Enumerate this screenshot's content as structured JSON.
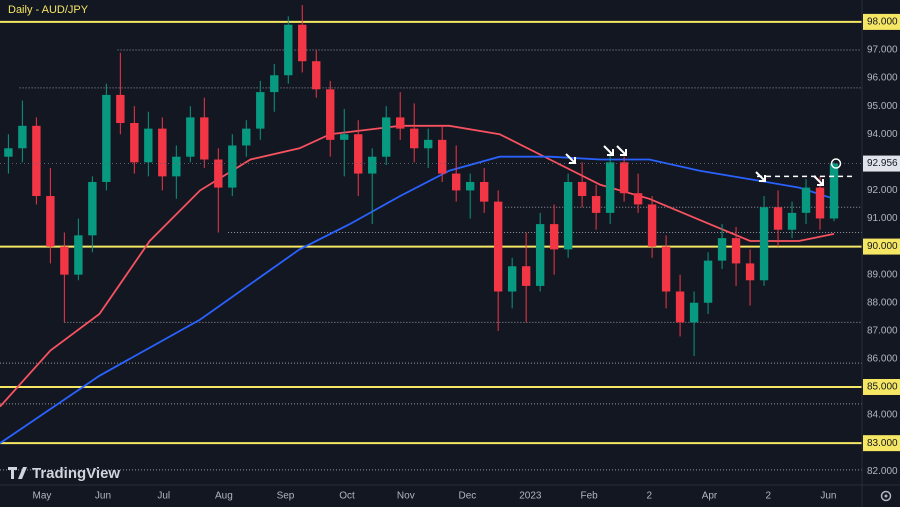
{
  "chart_data": {
    "type": "candlestick",
    "title": "Daily - AUD/JPY",
    "brand": "TradingView",
    "background": "#131722",
    "xlim": [
      -0.6,
      61
    ],
    "ylim": [
      81.51,
      98.78
    ],
    "yticks": [
      {
        "value": 98,
        "label": "98.000"
      },
      {
        "value": 97,
        "label": "97.000"
      },
      {
        "value": 96,
        "label": "96.000"
      },
      {
        "value": 95,
        "label": "95.000"
      },
      {
        "value": 94,
        "label": "94.000"
      },
      {
        "value": 92,
        "label": "92.000"
      },
      {
        "value": 91,
        "label": "91.000"
      },
      {
        "value": 90,
        "label": "90.000"
      },
      {
        "value": 89,
        "label": "89.000"
      },
      {
        "value": 88,
        "label": "88.000"
      },
      {
        "value": 87,
        "label": "87.000"
      },
      {
        "value": 86,
        "label": "86.000"
      },
      {
        "value": 85,
        "label": "85.000"
      },
      {
        "value": 84,
        "label": "84.000"
      },
      {
        "value": 83,
        "label": "83.000"
      },
      {
        "value": 82,
        "label": "82.000"
      }
    ],
    "xticks": [
      {
        "value": 2.4,
        "label": "May"
      },
      {
        "value": 6.76,
        "label": "Jun"
      },
      {
        "value": 11.1,
        "label": "Jul"
      },
      {
        "value": 15.4,
        "label": "Aug"
      },
      {
        "value": 19.8,
        "label": "Sep"
      },
      {
        "value": 24.2,
        "label": "Oct"
      },
      {
        "value": 28.4,
        "label": "Nov"
      },
      {
        "value": 32.8,
        "label": "Dec"
      },
      {
        "value": 37.3,
        "label": "2023"
      },
      {
        "value": 41.5,
        "label": "Feb"
      },
      {
        "value": 45.8,
        "label": "2"
      },
      {
        "value": 50.1,
        "label": "Apr"
      },
      {
        "value": 54.3,
        "label": "2"
      },
      {
        "value": 58.6,
        "label": "Jun"
      }
    ],
    "up_color": "#089981",
    "down_color": "#f23645",
    "open": [
      93.2,
      93.5,
      94.3,
      91.8,
      90.0,
      89.0,
      90.4,
      92.3,
      95.4,
      94.4,
      93.0,
      94.2,
      92.5,
      93.2,
      94.6,
      93.1,
      92.1,
      93.6,
      94.2,
      95.5,
      96.1,
      97.9,
      96.6,
      95.6,
      93.8,
      94.0,
      92.6,
      93.2,
      94.6,
      94.2,
      93.5,
      93.8,
      92.6,
      92.0,
      92.3,
      91.6,
      88.4,
      89.3,
      88.6,
      90.8,
      89.9,
      92.3,
      91.8,
      91.2,
      93.0,
      91.9,
      91.5,
      90.0,
      88.4,
      87.3,
      88.0,
      89.5,
      90.3,
      89.4,
      88.8,
      91.4,
      90.6,
      91.2,
      92.1,
      91.0
    ],
    "high": [
      94.0,
      95.2,
      94.6,
      92.8,
      90.5,
      91.0,
      92.5,
      95.8,
      96.9,
      95.0,
      94.8,
      94.6,
      93.6,
      95.0,
      95.3,
      93.5,
      94.0,
      94.5,
      95.9,
      96.5,
      98.2,
      98.6,
      97.0,
      95.9,
      94.9,
      94.5,
      93.5,
      95.0,
      95.5,
      95.1,
      94.2,
      94.3,
      93.6,
      92.6,
      92.8,
      92.0,
      89.6,
      90.5,
      91.2,
      91.5,
      92.6,
      93.0,
      92.2,
      93.4,
      93.2,
      92.6,
      91.8,
      90.4,
      89.0,
      88.4,
      89.8,
      90.8,
      90.7,
      89.9,
      91.8,
      92.0,
      91.6,
      92.4,
      92.5,
      93.0
    ],
    "low": [
      92.6,
      93.0,
      91.5,
      89.4,
      87.3,
      88.8,
      89.8,
      92.0,
      94.0,
      92.6,
      92.5,
      92.0,
      91.7,
      93.0,
      92.8,
      90.5,
      91.8,
      93.2,
      93.8,
      94.8,
      95.8,
      96.2,
      95.3,
      93.2,
      92.5,
      91.8,
      90.8,
      92.9,
      93.8,
      93.0,
      92.8,
      92.3,
      91.6,
      91.0,
      91.2,
      87.0,
      87.8,
      87.3,
      88.4,
      89.0,
      89.6,
      91.4,
      90.6,
      90.8,
      91.6,
      91.2,
      89.6,
      87.8,
      86.8,
      86.1,
      87.6,
      89.2,
      88.6,
      87.9,
      88.6,
      90.0,
      90.3,
      90.8,
      90.6,
      90.9
    ],
    "close": [
      93.5,
      94.3,
      91.8,
      90.0,
      89.0,
      90.4,
      92.3,
      95.4,
      94.4,
      93.0,
      94.2,
      92.5,
      93.2,
      94.6,
      93.1,
      92.1,
      93.6,
      94.2,
      95.5,
      96.1,
      97.9,
      96.6,
      95.6,
      93.8,
      94.0,
      92.6,
      93.2,
      94.6,
      94.2,
      93.5,
      93.8,
      92.6,
      92.0,
      92.3,
      91.6,
      88.4,
      89.3,
      88.6,
      90.8,
      89.9,
      92.3,
      91.8,
      91.2,
      93.0,
      91.9,
      91.5,
      90.0,
      88.4,
      87.3,
      88.0,
      89.5,
      90.3,
      89.4,
      88.8,
      91.4,
      90.6,
      91.2,
      92.1,
      91.0,
      92.956
    ],
    "lines": [
      {
        "color": "#f7525f",
        "x": [
          -0.6,
          3.0,
          6.5,
          10.1,
          13.7,
          17.3,
          20.8,
          23.0,
          28.0,
          31.5,
          35.1,
          38.7,
          42.3,
          45.8,
          49.4,
          53.0,
          56.5,
          59.0
        ],
        "values": [
          84.3,
          86.3,
          87.6,
          90.2,
          92.0,
          93.1,
          93.5,
          94.0,
          94.3,
          94.3,
          94.0,
          93.1,
          92.2,
          91.7,
          90.95,
          90.2,
          90.2,
          90.45
        ]
      },
      {
        "color": "#2962ff",
        "x": [
          -0.6,
          6.5,
          13.7,
          20.8,
          24.4,
          28.0,
          31.5,
          35.1,
          38.7,
          42.3,
          45.8,
          49.4,
          53.0,
          56.5,
          59.0
        ],
        "values": [
          83.0,
          85.4,
          87.4,
          89.9,
          90.8,
          91.8,
          92.7,
          93.2,
          93.2,
          93.1,
          93.1,
          92.7,
          92.4,
          92.1,
          91.7
        ]
      }
    ],
    "yellow_levels": [
      98,
      90,
      85,
      83
    ],
    "level_color": "#f5e663",
    "dotted_levels": [
      {
        "value": 97.0,
        "from": 7.8
      },
      {
        "value": 95.65,
        "from": 0.8
      },
      {
        "value": 91.4,
        "from": 35.5
      },
      {
        "value": 90.5,
        "from": 15.7
      },
      {
        "value": 87.3,
        "from": 4.0
      },
      {
        "value": 85.85,
        "from": -0.6
      },
      {
        "value": 84.4,
        "from": -0.6
      },
      {
        "value": 82.05,
        "from": -0.6
      }
    ],
    "resistance": {
      "value": 92.5,
      "from": 53.5,
      "to": 60.5
    },
    "last_price": {
      "value": 92.956,
      "label": "92.956"
    }
  }
}
